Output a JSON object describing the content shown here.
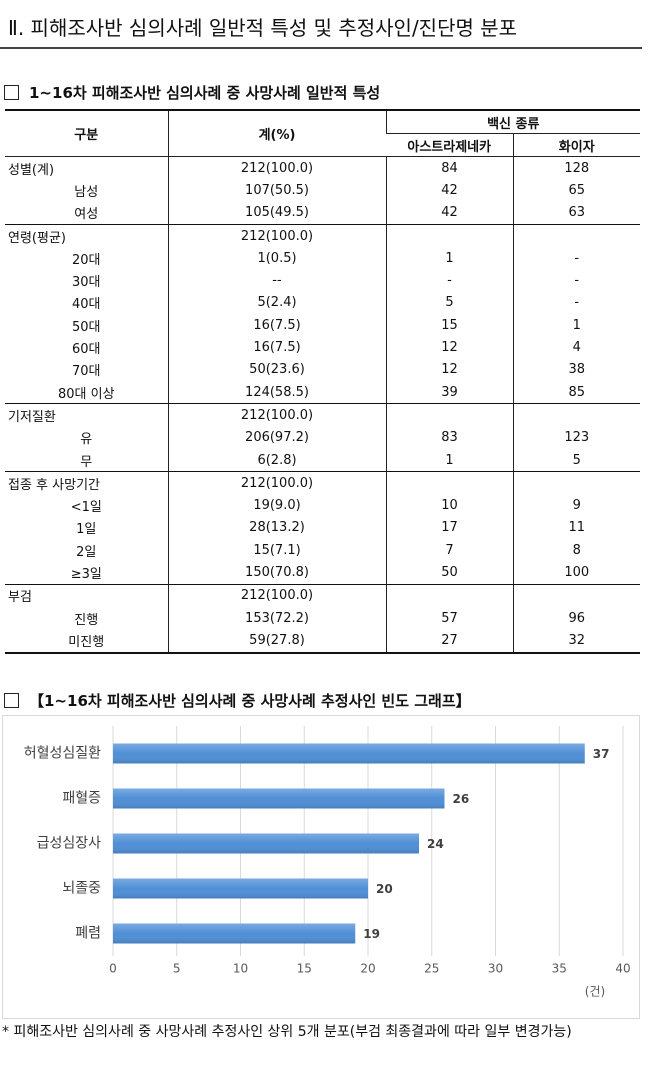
{
  "header": {
    "title": "Ⅱ. 피해조사반 심의사례 일반적 특성 및 추정사인/진단명 분포"
  },
  "table_section": {
    "title": "1~16차 피해조사반 심의사례 중 사망사례 일반적 특성"
  },
  "table": {
    "header": {
      "category": "구분",
      "total": "계(%)",
      "vaccine_group": "백신 종류",
      "vaccines": [
        "아스트라제네카",
        "화이자"
      ]
    },
    "blocks": [
      {
        "rows": [
          [
            "성별(계)",
            "212(100.0)",
            "84",
            "128"
          ],
          [
            "남성",
            "107(50.5)",
            "42",
            "65"
          ],
          [
            "여성",
            "105(49.5)",
            "42",
            "63"
          ]
        ]
      },
      {
        "rows": [
          [
            "연령(평균)",
            "212(100.0)",
            null,
            null
          ],
          [
            "20대",
            "1(0.5)",
            "1",
            "-"
          ],
          [
            "30대",
            "--",
            "-",
            "-"
          ],
          [
            "40대",
            "5(2.4)",
            "5",
            "-"
          ],
          [
            "50대",
            "16(7.5)",
            "15",
            "1"
          ],
          [
            "60대",
            "16(7.5)",
            "12",
            "4"
          ],
          [
            "70대",
            "50(23.6)",
            "12",
            "38"
          ],
          [
            "80대 이상",
            "124(58.5)",
            "39",
            "85"
          ]
        ]
      },
      {
        "rows": [
          [
            "기저질환",
            "212(100.0)",
            null,
            null
          ],
          [
            "유",
            "206(97.2)",
            "83",
            "123"
          ],
          [
            "무",
            "6(2.8)",
            "1",
            "5"
          ]
        ]
      },
      {
        "rows": [
          [
            "접종 후 사망기간",
            "212(100.0)",
            null,
            null
          ],
          [
            "<1일",
            "19(9.0)",
            "10",
            "9"
          ],
          [
            "1일",
            "28(13.2)",
            "17",
            "11"
          ],
          [
            "2일",
            "15(7.1)",
            "7",
            "8"
          ],
          [
            "≥3일",
            "150(70.8)",
            "50",
            "100"
          ]
        ]
      },
      {
        "rows": [
          [
            "부검",
            "212(100.0)",
            null,
            null
          ],
          [
            "진행",
            "153(72.2)",
            "57",
            "96"
          ],
          [
            "미진행",
            "59(27.8)",
            "27",
            "32"
          ]
        ]
      }
    ]
  },
  "chart_data": {
    "type": "hbar",
    "title": "【1~16차 피해조사반 심의사례 중 사망사례 추정사인 빈도 그래프】",
    "categories": [
      "허혈성심질환",
      "패혈증",
      "급성심장사",
      "뇌졸중",
      "폐렴"
    ],
    "values": [
      37,
      26,
      24,
      20,
      19
    ],
    "color": "#4f8fd6",
    "xlim": [
      0,
      40
    ],
    "xticks": [
      0,
      5,
      10,
      15,
      20,
      25,
      30,
      35,
      40
    ],
    "x_unit": "(건)",
    "grid": true
  },
  "footnote": "* 피해조사반 심의사례 중 사망사례 추정사인 상위 5개 분포(부검 최종결과에 따라 일부 변경가능)"
}
